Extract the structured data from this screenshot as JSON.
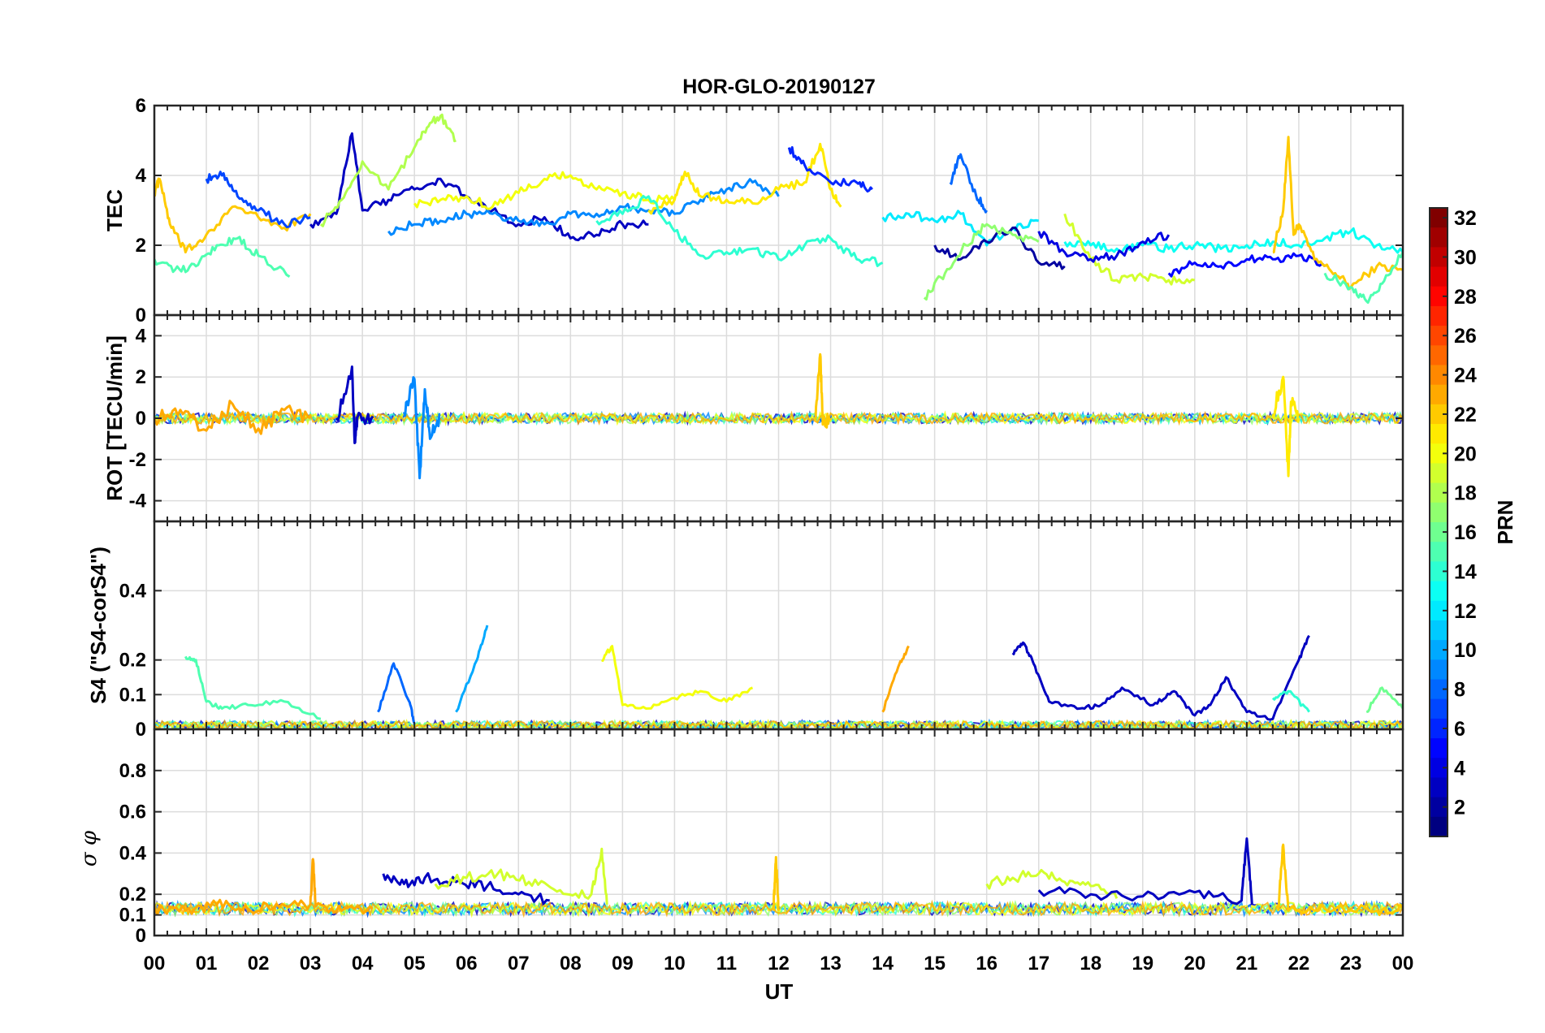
{
  "chart_data": {
    "title": "HOR-GLO-20190127",
    "type": "line",
    "xlabel": "UT",
    "x_ticks": [
      "00",
      "01",
      "02",
      "03",
      "04",
      "05",
      "06",
      "07",
      "08",
      "09",
      "10",
      "11",
      "12",
      "13",
      "14",
      "15",
      "16",
      "17",
      "18",
      "19",
      "20",
      "21",
      "22",
      "23",
      "00"
    ],
    "xlim": [
      0,
      24
    ],
    "colorbar": {
      "label": "PRN",
      "range": [
        1,
        32
      ],
      "ticks": [
        "2",
        "4",
        "6",
        "8",
        "10",
        "12",
        "14",
        "16",
        "18",
        "20",
        "22",
        "24",
        "26",
        "28",
        "30",
        "32"
      ],
      "colormap": "jet"
    },
    "panels": [
      {
        "name": "TEC",
        "ylabel": "TEC",
        "ylim": [
          0,
          6
        ],
        "y_ticks": [
          "0",
          "2",
          "4",
          "6"
        ],
        "y_tick_values": [
          0,
          2,
          4,
          6
        ],
        "series": [
          {
            "prn": 22,
            "x": [
              0.0,
              0.1,
              0.3,
              0.6,
              1.0,
              1.5,
              2.0,
              2.5,
              3.0
            ],
            "y": [
              3.5,
              3.9,
              2.6,
              1.8,
              2.3,
              3.1,
              2.8,
              2.5,
              2.9
            ]
          },
          {
            "prn": 15,
            "x": [
              0.0,
              0.4,
              0.8,
              1.2,
              1.6,
              2.0,
              2.6
            ],
            "y": [
              1.6,
              1.3,
              1.4,
              2.0,
              2.2,
              1.7,
              1.1
            ]
          },
          {
            "prn": 7,
            "x": [
              1.0,
              1.3,
              1.6,
              2.0,
              2.5,
              3.0
            ],
            "y": [
              3.9,
              4.0,
              3.4,
              3.0,
              2.6,
              2.8
            ]
          },
          {
            "prn": 3,
            "x": [
              3.0,
              3.5,
              3.8,
              4.0,
              4.5,
              5.0,
              5.5,
              6.0,
              6.5,
              7.0,
              7.5,
              8.0,
              8.5,
              9.0,
              9.5
            ],
            "y": [
              2.6,
              2.9,
              5.2,
              3.0,
              3.3,
              3.6,
              3.9,
              3.4,
              3.0,
              2.6,
              2.8,
              2.2,
              2.3,
              2.6,
              2.6
            ]
          },
          {
            "prn": 18,
            "x": [
              3.2,
              3.6,
              4.0,
              4.5,
              5.0,
              5.3,
              5.5,
              5.8
            ],
            "y": [
              2.6,
              3.3,
              4.4,
              3.6,
              4.8,
              5.5,
              5.7,
              5.0
            ]
          },
          {
            "prn": 9,
            "x": [
              4.5,
              5.0,
              5.5,
              6.0,
              6.5,
              7.0,
              7.5,
              8.0,
              8.5,
              9.0,
              9.5,
              10.0,
              10.5,
              11.0,
              11.5,
              12.0
            ],
            "y": [
              2.4,
              2.6,
              2.7,
              2.9,
              2.9,
              2.7,
              2.6,
              2.9,
              2.9,
              3.1,
              3.0,
              2.9,
              3.3,
              3.6,
              3.8,
              3.4
            ]
          },
          {
            "prn": 20,
            "x": [
              5.0,
              5.5,
              6.0,
              6.5,
              7.0,
              7.5,
              8.0,
              8.5,
              9.0,
              9.5,
              10.0
            ],
            "y": [
              3.2,
              3.3,
              3.4,
              3.1,
              3.5,
              3.9,
              4.0,
              3.6,
              3.5,
              3.3,
              3.3
            ]
          },
          {
            "prn": 21,
            "x": [
              9.5,
              10.0,
              10.2,
              10.5,
              11.0,
              11.5,
              12.0,
              12.5,
              12.8,
              13.0,
              13.2
            ],
            "y": [
              3.0,
              3.3,
              4.1,
              3.4,
              3.3,
              3.2,
              3.6,
              3.8,
              4.9,
              3.6,
              3.1
            ]
          },
          {
            "prn": 14,
            "x": [
              8.5,
              9.0,
              9.5,
              10.0,
              10.5,
              11.0,
              11.5,
              12.0,
              12.5,
              13.0,
              13.5,
              14.0
            ],
            "y": [
              2.7,
              2.9,
              3.4,
              2.4,
              1.7,
              1.8,
              1.9,
              1.6,
              2.0,
              2.2,
              1.6,
              1.5
            ]
          },
          {
            "prn": 6,
            "x": [
              12.2,
              12.5,
              13.0,
              13.5,
              13.8
            ],
            "y": [
              4.8,
              4.3,
              3.8,
              3.8,
              3.6
            ]
          },
          {
            "prn": 12,
            "x": [
              14.0,
              14.5,
              15.0,
              15.5,
              16.0,
              16.5,
              17.0
            ],
            "y": [
              2.8,
              2.9,
              2.7,
              2.9,
              2.0,
              2.5,
              2.7
            ]
          },
          {
            "prn": 8,
            "x": [
              15.3,
              15.5,
              15.8,
              16.0
            ],
            "y": [
              3.8,
              4.6,
              3.4,
              3.0
            ]
          },
          {
            "prn": 2,
            "x": [
              15.0,
              15.5,
              16.0,
              16.5,
              17.0,
              17.5
            ],
            "y": [
              2.0,
              1.6,
              2.1,
              2.5,
              1.5,
              1.4
            ]
          },
          {
            "prn": 17,
            "x": [
              14.8,
              15.2,
              15.6,
              16.0,
              16.5,
              17.0
            ],
            "y": [
              0.5,
              1.2,
              2.0,
              2.6,
              2.3,
              2.1
            ]
          },
          {
            "prn": 13,
            "x": [
              17.5,
              18.0,
              18.5,
              19.0,
              19.5,
              20.0,
              20.5,
              21.0,
              21.5,
              22.0,
              22.5,
              23.0,
              23.5,
              24.0
            ],
            "y": [
              2.1,
              2.0,
              1.9,
              2.0,
              1.9,
              2.0,
              1.9,
              2.0,
              2.1,
              2.0,
              2.2,
              2.4,
              2.0,
              1.8
            ]
          },
          {
            "prn": 19,
            "x": [
              17.5,
              18.0,
              18.5,
              19.0,
              19.5,
              20.0
            ],
            "y": [
              2.9,
              1.6,
              1.0,
              1.1,
              1.0,
              1.0
            ]
          },
          {
            "prn": 4,
            "x": [
              17.0,
              17.5,
              18.0,
              18.5,
              19.0,
              19.5
            ],
            "y": [
              2.4,
              1.8,
              1.6,
              1.7,
              2.1,
              2.3
            ]
          },
          {
            "prn": 5,
            "x": [
              19.5,
              20.0,
              20.5,
              21.0,
              21.5,
              22.0,
              22.5
            ],
            "y": [
              1.2,
              1.5,
              1.4,
              1.6,
              1.6,
              1.7,
              1.4
            ]
          },
          {
            "prn": 22,
            "x": [
              21.5,
              21.7,
              21.8,
              21.9,
              22.0,
              22.3,
              22.7,
              23.0,
              23.5,
              24.0
            ],
            "y": [
              1.8,
              3.0,
              5.1,
              2.3,
              2.6,
              1.6,
              1.2,
              0.8,
              1.4,
              1.3
            ]
          },
          {
            "prn": 15,
            "x": [
              22.5,
              23.0,
              23.3,
              23.6,
              24.0
            ],
            "y": [
              1.2,
              0.8,
              0.4,
              0.9,
              1.8
            ]
          }
        ]
      },
      {
        "name": "ROT",
        "ylabel": "ROT [TECU/min]",
        "ylim": [
          -5,
          5
        ],
        "y_ticks": [
          "-4",
          "-2",
          "0",
          "2",
          "4"
        ],
        "y_tick_values": [
          -4,
          -2,
          0,
          2,
          4
        ],
        "series": [
          {
            "prn": 23,
            "x": [
              0.0,
              0.5,
              1.0,
              1.5,
              2.0,
              2.5,
              3.0
            ],
            "y": [
              0.0,
              0.4,
              -0.6,
              0.7,
              -0.5,
              0.4,
              0.0
            ]
          },
          {
            "prn": 3,
            "x": [
              3.5,
              3.8,
              3.85,
              3.9,
              4.2
            ],
            "y": [
              0.0,
              2.5,
              -1.2,
              0.0,
              0.1
            ]
          },
          {
            "prn": 9,
            "x": [
              4.8,
              5.0,
              5.1,
              5.2,
              5.3,
              5.5
            ],
            "y": [
              0.3,
              1.9,
              -2.9,
              1.4,
              -1.0,
              0.2
            ]
          },
          {
            "prn": 22,
            "x": [
              12.7,
              12.8,
              12.85,
              13.0
            ],
            "y": [
              0.0,
              3.1,
              -0.3,
              0.0
            ]
          },
          {
            "prn": 21,
            "x": [
              21.5,
              21.7,
              21.8,
              21.85,
              22.0
            ],
            "y": [
              0.2,
              2.0,
              -2.8,
              0.8,
              0.0
            ]
          }
        ]
      },
      {
        "name": "S4",
        "ylabel": "S4 (\"S4-corS4\")",
        "ylim": [
          0,
          0.6
        ],
        "y_ticks": [
          "0",
          "0.1",
          "0.2",
          "0.4"
        ],
        "y_tick_values": [
          0,
          0.1,
          0.2,
          0.4
        ],
        "series": [
          {
            "prn": 15,
            "x": [
              0.6,
              0.8,
              1.0,
              1.3,
              1.8,
              2.5,
              3.2
            ],
            "y": [
              0.21,
              0.2,
              0.08,
              0.06,
              0.07,
              0.08,
              0.03
            ]
          },
          {
            "prn": 8,
            "x": [
              4.3,
              4.6,
              4.9,
              5.0
            ],
            "y": [
              0.05,
              0.19,
              0.08,
              0.02
            ]
          },
          {
            "prn": 10,
            "x": [
              5.8,
              6.2,
              6.4
            ],
            "y": [
              0.05,
              0.2,
              0.3
            ]
          },
          {
            "prn": 20,
            "x": [
              8.6,
              8.8,
              9.0,
              9.5,
              10.0,
              10.5,
              11.0,
              11.5
            ],
            "y": [
              0.2,
              0.24,
              0.07,
              0.06,
              0.09,
              0.11,
              0.08,
              0.12
            ]
          },
          {
            "prn": 23,
            "x": [
              14.0,
              14.3,
              14.5
            ],
            "y": [
              0.05,
              0.18,
              0.24
            ]
          },
          {
            "prn": 3,
            "x": [
              16.5,
              16.7,
              16.9,
              17.2,
              17.8,
              18.2,
              18.6,
              19.2,
              19.6,
              20.0,
              20.3,
              20.6,
              21.0,
              21.5,
              22.0,
              22.2
            ],
            "y": [
              0.22,
              0.25,
              0.19,
              0.08,
              0.06,
              0.07,
              0.12,
              0.07,
              0.11,
              0.04,
              0.07,
              0.15,
              0.05,
              0.03,
              0.2,
              0.27
            ]
          },
          {
            "prn": 14,
            "x": [
              21.5,
              21.8,
              22.2
            ],
            "y": [
              0.09,
              0.11,
              0.05
            ]
          },
          {
            "prn": 16,
            "x": [
              23.3,
              23.6,
              24.0
            ],
            "y": [
              0.05,
              0.12,
              0.06
            ]
          }
        ]
      },
      {
        "name": "sigma_phi",
        "ylabel": "σ φ",
        "ylim": [
          0,
          1
        ],
        "y_ticks": [
          "0",
          "0.1",
          "0.2",
          "0.4",
          "0.6",
          "0.8"
        ],
        "y_tick_values": [
          0,
          0.1,
          0.2,
          0.4,
          0.6,
          0.8
        ],
        "series": [
          {
            "prn": 23,
            "x": [
              0.0,
              0.6,
              1.2,
              1.8,
              2.4,
              3.0,
              3.05,
              3.1,
              3.6,
              4.2
            ],
            "y": [
              0.13,
              0.12,
              0.15,
              0.13,
              0.14,
              0.15,
              0.37,
              0.14,
              0.12,
              0.13
            ]
          },
          {
            "prn": 3,
            "x": [
              4.4,
              4.8,
              5.2,
              5.8,
              6.4,
              7.0,
              7.6
            ],
            "y": [
              0.3,
              0.25,
              0.28,
              0.26,
              0.24,
              0.2,
              0.17
            ]
          },
          {
            "prn": 19,
            "x": [
              5.4,
              6.0,
              6.6,
              7.2,
              7.8,
              8.4,
              8.6,
              8.7
            ],
            "y": [
              0.25,
              0.28,
              0.3,
              0.26,
              0.22,
              0.2,
              0.42,
              0.15
            ]
          },
          {
            "prn": 22,
            "x": [
              11.9,
              11.95,
              12.0
            ],
            "y": [
              0.12,
              0.38,
              0.12
            ]
          },
          {
            "prn": 19,
            "x": [
              16.0,
              16.5,
              17.0,
              17.5,
              18.0,
              18.5
            ],
            "y": [
              0.25,
              0.28,
              0.3,
              0.26,
              0.24,
              0.18
            ]
          },
          {
            "prn": 3,
            "x": [
              17.0,
              18.0,
              19.0,
              20.0,
              20.9,
              21.0,
              21.1
            ],
            "y": [
              0.22,
              0.2,
              0.19,
              0.21,
              0.17,
              0.47,
              0.15
            ]
          },
          {
            "prn": 22,
            "x": [
              21.6,
              21.7,
              21.8,
              22.5,
              23.5,
              24.0
            ],
            "y": [
              0.12,
              0.44,
              0.12,
              0.13,
              0.12,
              0.13
            ]
          }
        ]
      }
    ]
  }
}
